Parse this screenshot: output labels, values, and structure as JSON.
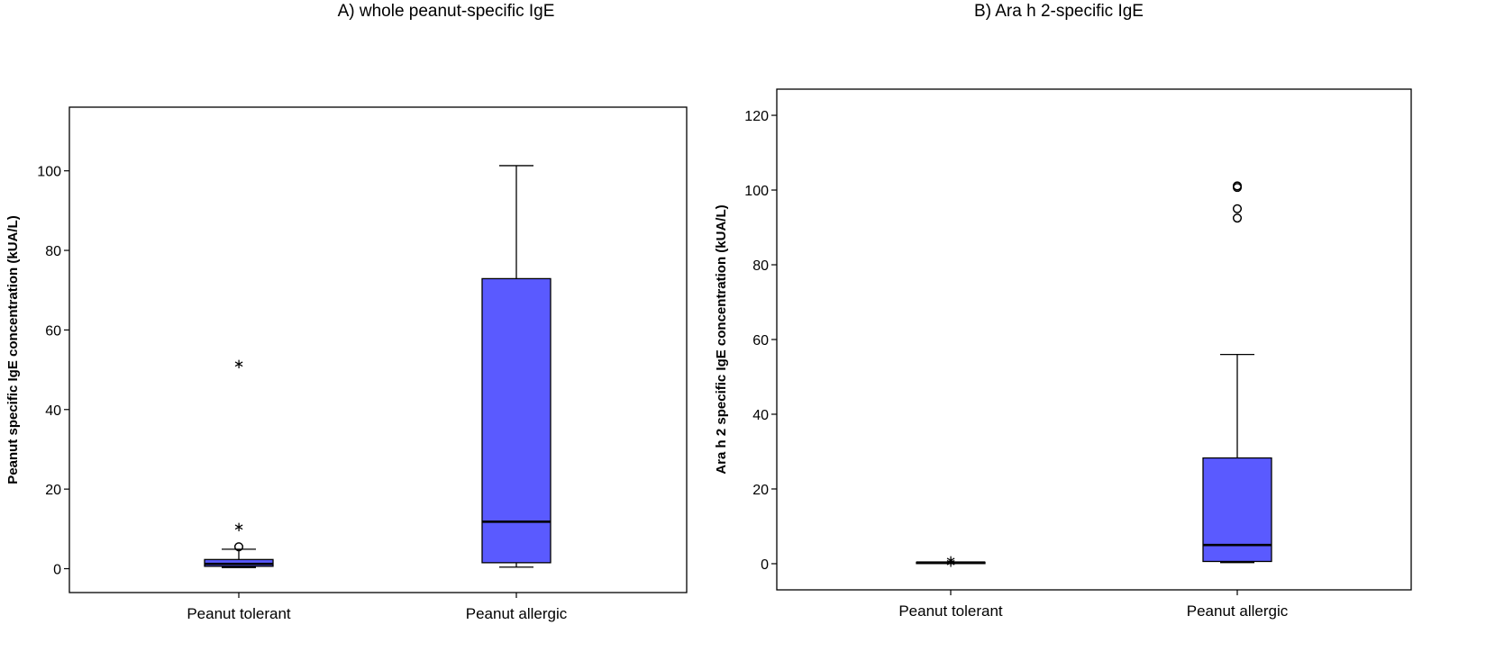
{
  "panels": [
    {
      "title": "A) whole peanut-specific IgE"
    },
    {
      "title": "B) Ara h 2-specific IgE"
    }
  ],
  "colors": {
    "box_fill": "#5a5aff",
    "stroke": "#000000",
    "background": "#ffffff"
  },
  "chart_data": [
    {
      "type": "boxplot",
      "title": "A) whole peanut-specific IgE",
      "xlabel": "",
      "ylabel": "Peanut specific IgE concentration (kUA/L)",
      "ylim": [
        -6,
        116
      ],
      "yticks": [
        0,
        20,
        40,
        60,
        80,
        100
      ],
      "grid": false,
      "categories": [
        "Peanut tolerant",
        "Peanut allergic"
      ],
      "boxes": [
        {
          "category": "Peanut tolerant",
          "whisker_low": 0.3,
          "q1": 0.6,
          "median": 1.2,
          "q3": 2.3,
          "whisker_high": 4.9,
          "outliers": [
            {
              "value": 5.5,
              "marker": "circle"
            }
          ],
          "extremes": [
            {
              "value": 11,
              "marker": "star"
            },
            {
              "value": 52,
              "marker": "star"
            }
          ]
        },
        {
          "category": "Peanut allergic",
          "whisker_low": 0.4,
          "q1": 1.5,
          "median": 11.8,
          "q3": 72.9,
          "whisker_high": 101.3,
          "outliers": [],
          "extremes": []
        }
      ]
    },
    {
      "type": "boxplot",
      "title": "B) Ara h 2-specific IgE",
      "xlabel": "",
      "ylabel": "Ara h 2 specific IgE concentration (kUA/L)",
      "ylim": [
        -7,
        127
      ],
      "yticks": [
        0,
        20,
        40,
        60,
        80,
        100,
        120
      ],
      "grid": false,
      "categories": [
        "Peanut tolerant",
        "Peanut allergic"
      ],
      "boxes": [
        {
          "category": "Peanut tolerant",
          "whisker_low": 0.2,
          "q1": 0.2,
          "median": 0.3,
          "q3": 0.4,
          "whisker_high": 0.4,
          "outliers": [],
          "extremes": [
            {
              "value": 0.8,
              "marker": "star"
            },
            {
              "value": 1.4,
              "marker": "star"
            }
          ]
        },
        {
          "category": "Peanut allergic",
          "whisker_low": 0.3,
          "q1": 0.6,
          "median": 5.0,
          "q3": 28.3,
          "whisker_high": 56.0,
          "outliers": [
            {
              "value": 92.5,
              "marker": "circle"
            },
            {
              "value": 95,
              "marker": "circle"
            },
            {
              "value": 100.7,
              "marker": "circle"
            },
            {
              "value": 101.1,
              "marker": "circle"
            }
          ],
          "extremes": []
        }
      ]
    }
  ]
}
